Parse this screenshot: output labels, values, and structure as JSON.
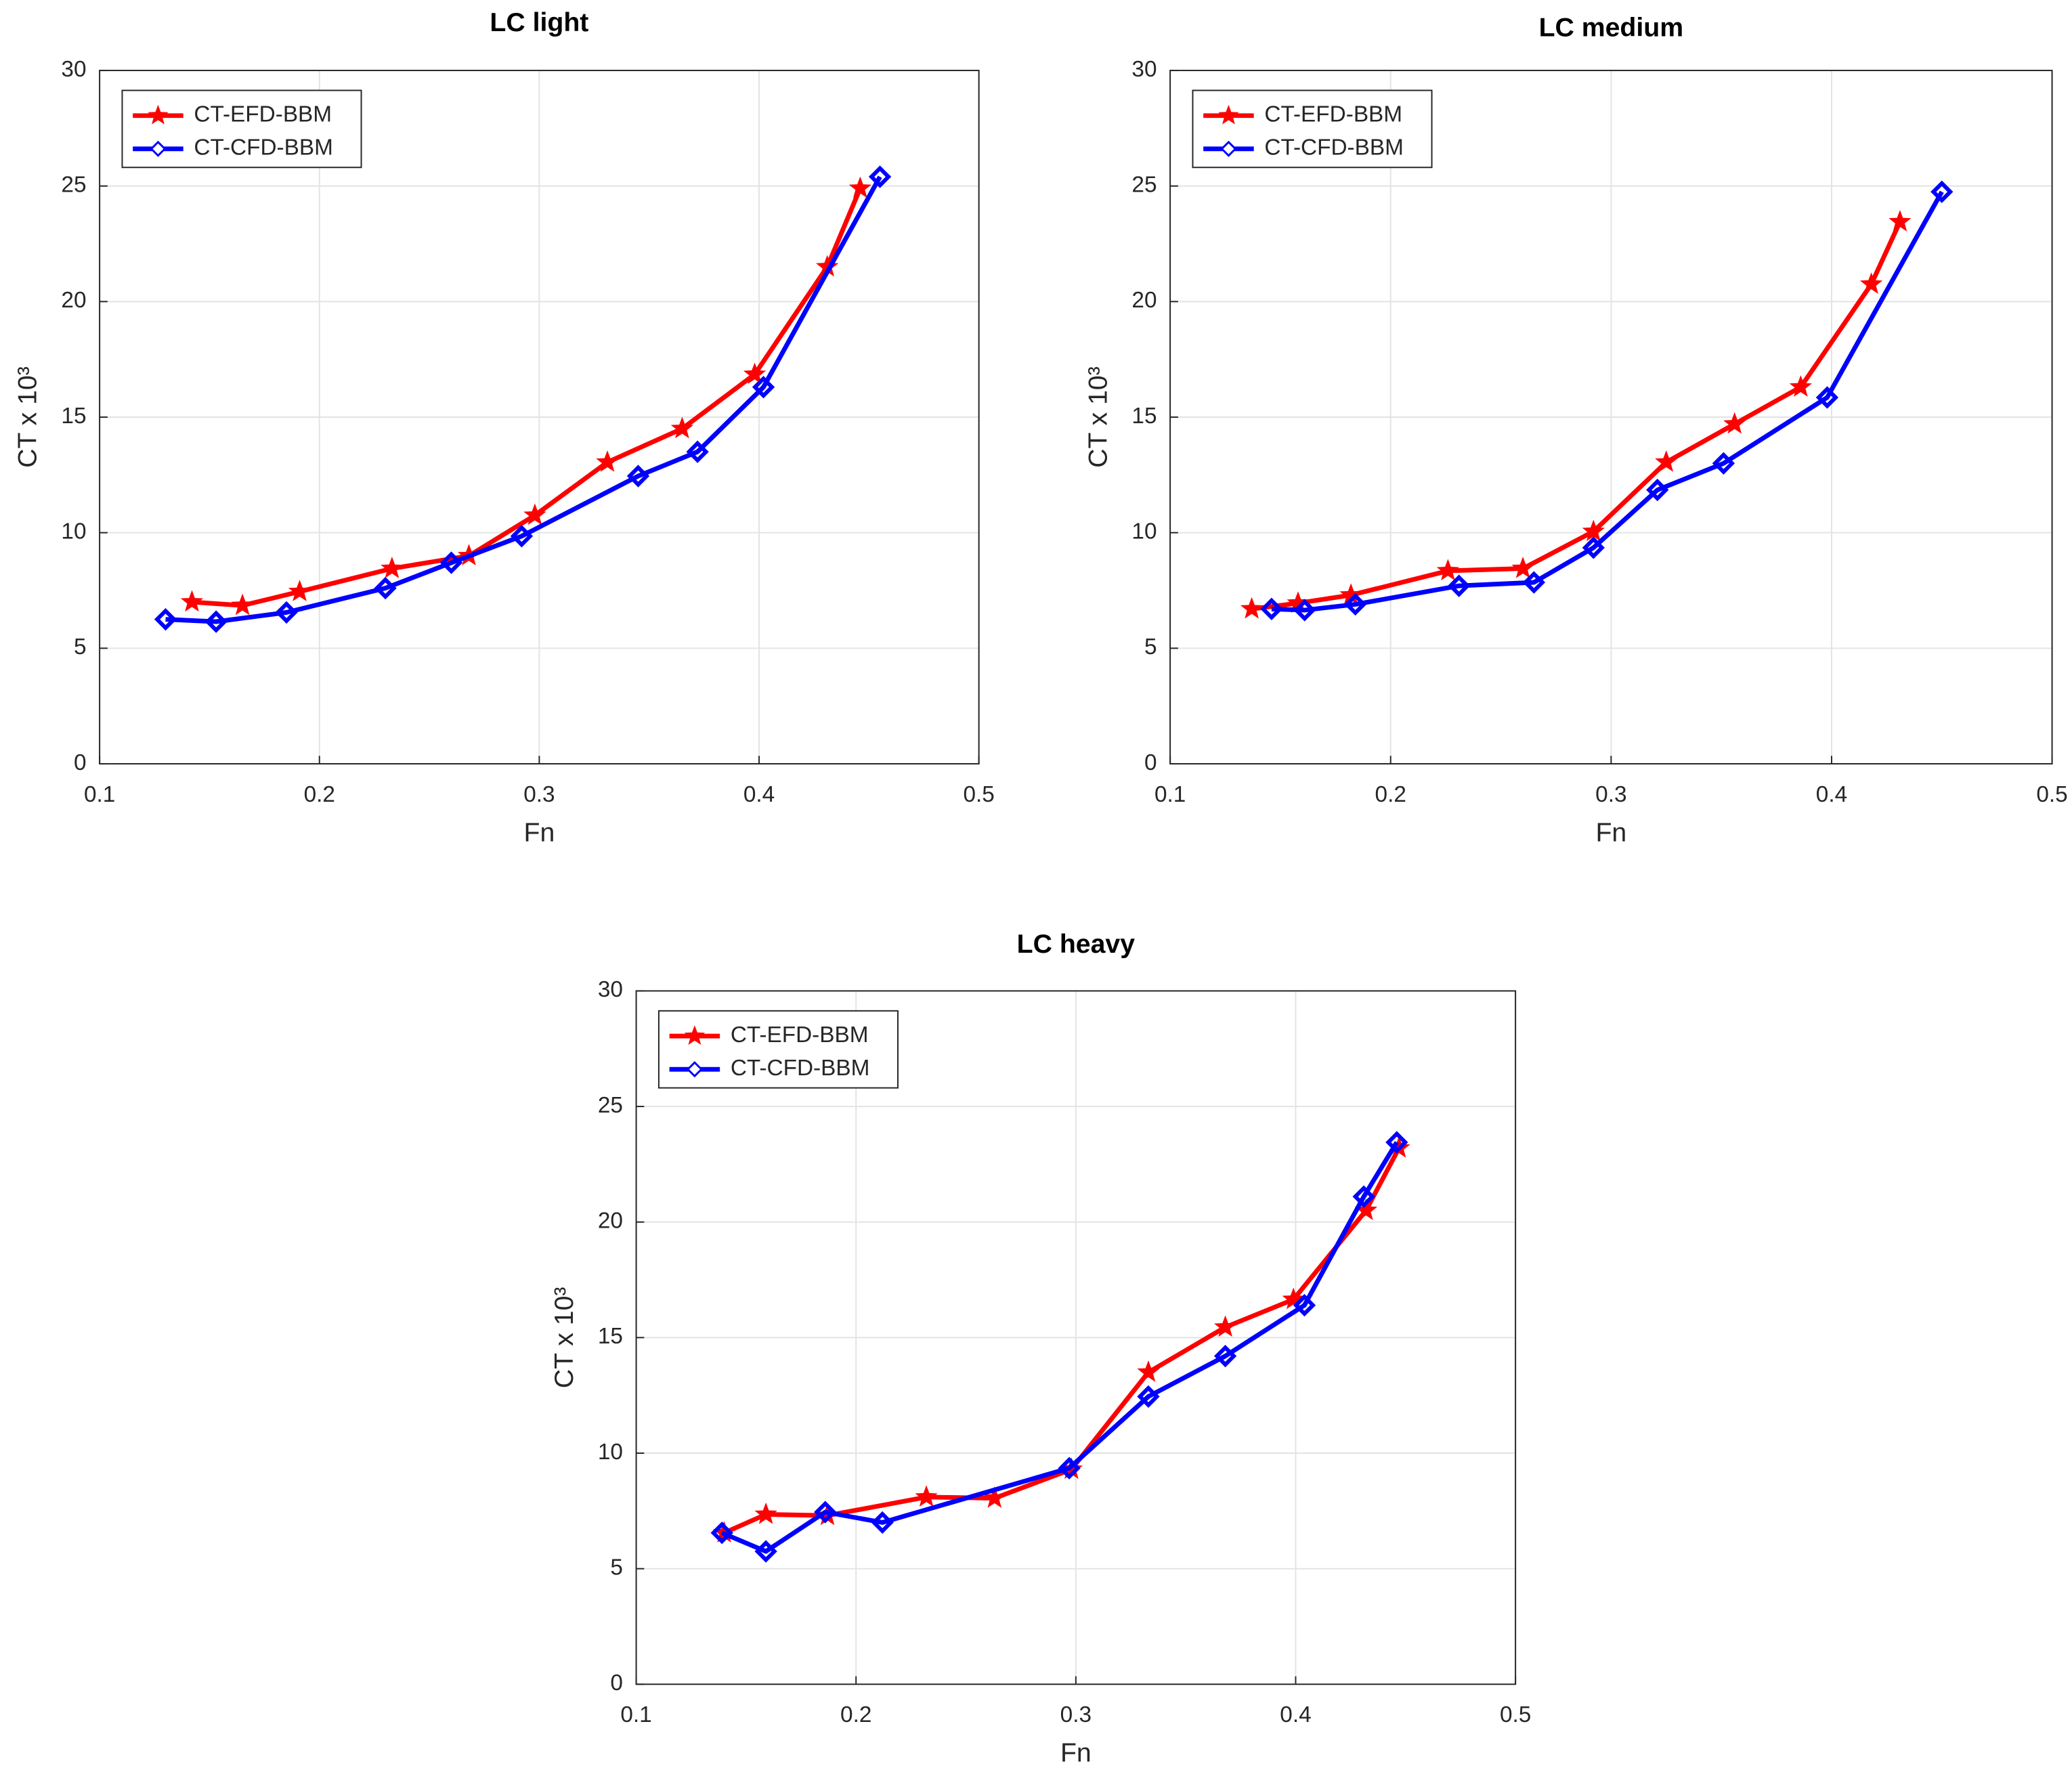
{
  "chart_data": [
    {
      "type": "line",
      "title": "LC light",
      "xlabel": "Fn",
      "ylabel": "CT x 10³",
      "xlim": [
        0.1,
        0.5
      ],
      "xticks": [
        0.1,
        0.2,
        0.3,
        0.4,
        0.5
      ],
      "ylim": [
        0,
        30
      ],
      "yticks": [
        0,
        5,
        10,
        15,
        20,
        25,
        30
      ],
      "grid": true,
      "legend": "upper left",
      "series": [
        {
          "name": "CT-EFD-BBM",
          "color": "#ff0000",
          "marker": "star",
          "x": [
            0.142,
            0.165,
            0.191,
            0.233,
            0.268,
            0.298,
            0.331,
            0.365,
            0.398,
            0.431,
            0.446
          ],
          "values": [
            7.0,
            6.85,
            7.45,
            8.45,
            9.0,
            10.75,
            13.05,
            14.5,
            16.85,
            21.5,
            24.9
          ]
        },
        {
          "name": "CT-CFD-BBM",
          "color": "#0000ff",
          "marker": "diamond",
          "x": [
            0.13,
            0.153,
            0.185,
            0.23,
            0.26,
            0.292,
            0.345,
            0.372,
            0.402,
            0.455
          ],
          "values": [
            6.25,
            6.15,
            6.55,
            7.6,
            8.7,
            9.85,
            12.45,
            13.5,
            16.3,
            25.4
          ]
        }
      ]
    },
    {
      "type": "line",
      "title": "LC medium",
      "xlabel": "Fn",
      "ylabel": "CT x 10³",
      "xlim": [
        0.1,
        0.5
      ],
      "xticks": [
        0.1,
        0.2,
        0.3,
        0.4,
        0.5
      ],
      "ylim": [
        0,
        30
      ],
      "yticks": [
        0,
        5,
        10,
        15,
        20,
        25,
        30
      ],
      "grid": true,
      "legend": "upper left",
      "series": [
        {
          "name": "CT-EFD-BBM",
          "color": "#ff0000",
          "marker": "star",
          "x": [
            0.137,
            0.158,
            0.182,
            0.226,
            0.26,
            0.292,
            0.325,
            0.356,
            0.386,
            0.418,
            0.431
          ],
          "values": [
            6.7,
            6.95,
            7.3,
            8.35,
            8.45,
            10.05,
            13.05,
            14.7,
            16.3,
            20.75,
            23.45
          ]
        },
        {
          "name": "CT-CFD-BBM",
          "color": "#0000ff",
          "marker": "diamond",
          "x": [
            0.146,
            0.161,
            0.184,
            0.231,
            0.265,
            0.292,
            0.321,
            0.351,
            0.398,
            0.45
          ],
          "values": [
            6.7,
            6.65,
            6.9,
            7.7,
            7.85,
            9.35,
            11.85,
            13.0,
            15.85,
            24.75
          ]
        }
      ]
    },
    {
      "type": "line",
      "title": "LC heavy",
      "xlabel": "Fn",
      "ylabel": "CT x 10³",
      "xlim": [
        0.1,
        0.5
      ],
      "xticks": [
        0.1,
        0.2,
        0.3,
        0.4,
        0.5
      ],
      "ylim": [
        0,
        30
      ],
      "yticks": [
        0,
        5,
        10,
        15,
        20,
        25,
        30
      ],
      "grid": true,
      "legend": "upper left",
      "series": [
        {
          "name": "CT-EFD-BBM",
          "color": "#ff0000",
          "marker": "star",
          "x": [
            0.14,
            0.159,
            0.187,
            0.232,
            0.263,
            0.298,
            0.333,
            0.368,
            0.399,
            0.432,
            0.447
          ],
          "values": [
            6.55,
            7.35,
            7.3,
            8.1,
            8.05,
            9.3,
            13.5,
            15.45,
            16.65,
            20.5,
            23.2
          ]
        },
        {
          "name": "CT-CFD-BBM",
          "color": "#0000ff",
          "marker": "diamond",
          "x": [
            0.139,
            0.159,
            0.186,
            0.212,
            0.297,
            0.333,
            0.368,
            0.404,
            0.431,
            0.446
          ],
          "values": [
            6.55,
            5.75,
            7.45,
            7.0,
            9.35,
            12.45,
            14.2,
            16.4,
            21.1,
            23.45
          ]
        }
      ]
    }
  ]
}
